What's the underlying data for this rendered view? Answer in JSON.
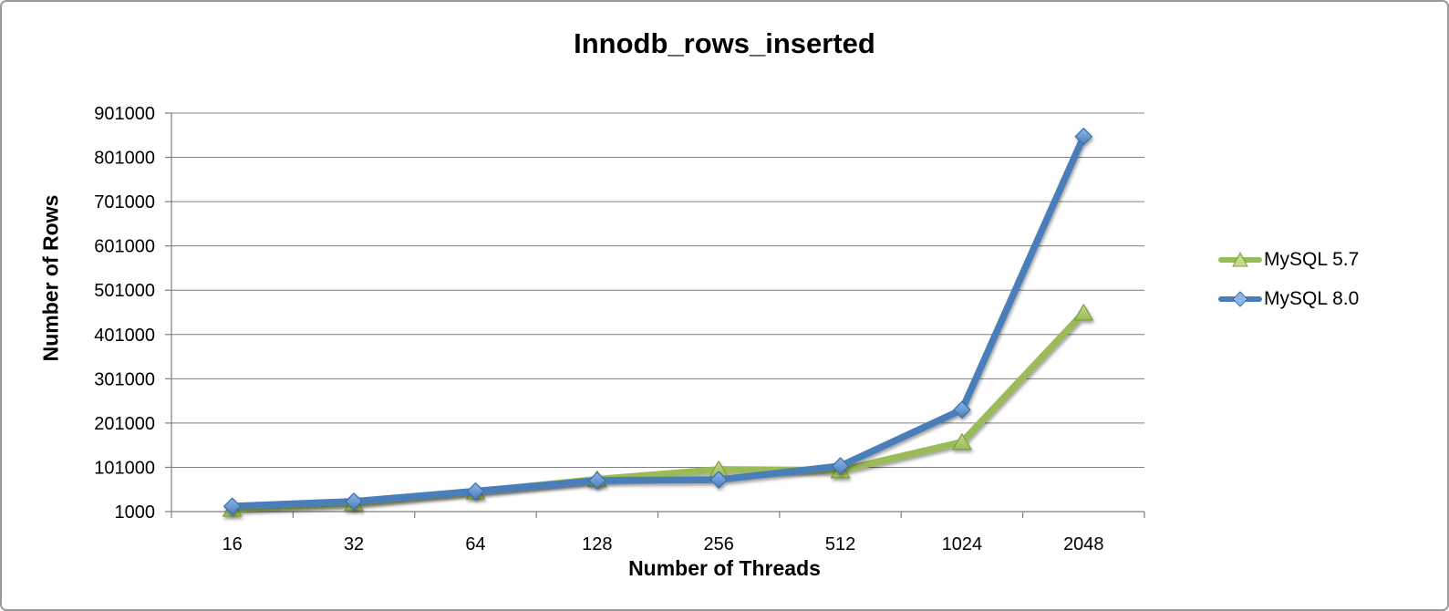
{
  "frame": {
    "background": "#ffffff",
    "border_color": "#9a9a9a",
    "gridline_color": "#7f7f7f",
    "text_color": "#000000"
  },
  "chart_data": {
    "type": "line",
    "title": "Innodb_rows_inserted",
    "xlabel": "Number of Threads",
    "ylabel": "Number of Rows",
    "categories": [
      "16",
      "32",
      "64",
      "128",
      "256",
      "512",
      "1024",
      "2048"
    ],
    "y_ticks": [
      1000,
      101000,
      201000,
      301000,
      401000,
      501000,
      601000,
      701000,
      801000,
      901000
    ],
    "ylim": [
      1000,
      901000
    ],
    "grid": "horizontal",
    "legend_position": "right",
    "series": [
      {
        "name": "MySQL 5.7",
        "marker": "triangle",
        "color": "#9ABB59",
        "marker_fill": "#C2DB8B",
        "marker_edge": "#7E9D3F",
        "values": [
          7000,
          20000,
          46000,
          74000,
          96000,
          94000,
          158000,
          450000
        ]
      },
      {
        "name": "MySQL 8.0",
        "marker": "diamond",
        "color": "#4A7EBB",
        "marker_fill": "#8FB6E8",
        "marker_edge": "#3E6DA6",
        "values": [
          13000,
          24000,
          47000,
          71000,
          73000,
          104000,
          231000,
          848000
        ]
      }
    ]
  }
}
